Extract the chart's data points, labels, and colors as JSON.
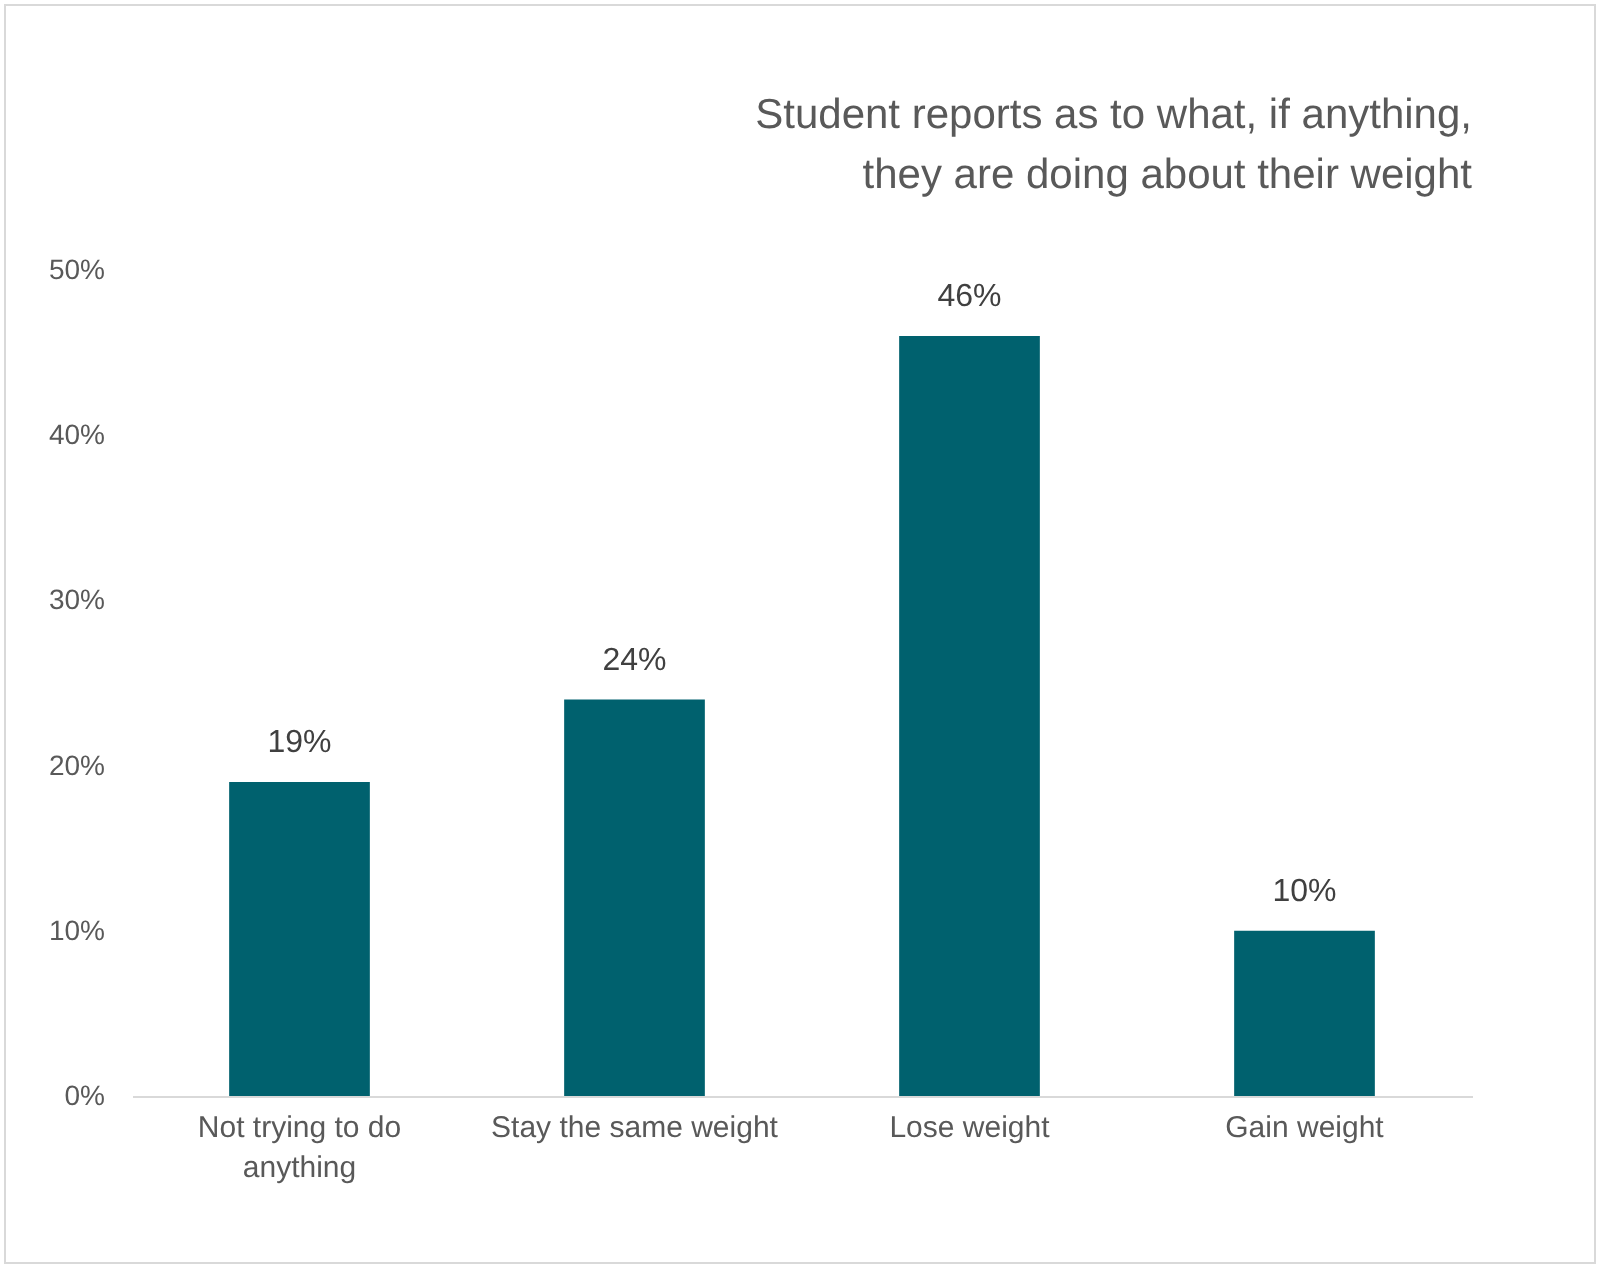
{
  "chart_data": {
    "type": "bar",
    "title": "Student reports as to what, if anything, they are doing about their weight",
    "categories": [
      "Not trying to do anything",
      "Stay the same weight",
      "Lose weight",
      "Gain weight"
    ],
    "values": [
      19,
      24,
      46,
      10
    ],
    "color": "#00616e",
    "ylim": [
      0,
      50
    ],
    "yticks": [
      {
        "value": 0,
        "label": "0%"
      },
      {
        "value": 10,
        "label": "10%"
      },
      {
        "value": 20,
        "label": "20%"
      },
      {
        "value": 30,
        "label": "30%"
      },
      {
        "value": 40,
        "label": "40%"
      },
      {
        "value": 50,
        "label": "50%"
      }
    ],
    "value_labels": [
      "19%",
      "24%",
      "46%",
      "10%"
    ],
    "grid": false
  }
}
